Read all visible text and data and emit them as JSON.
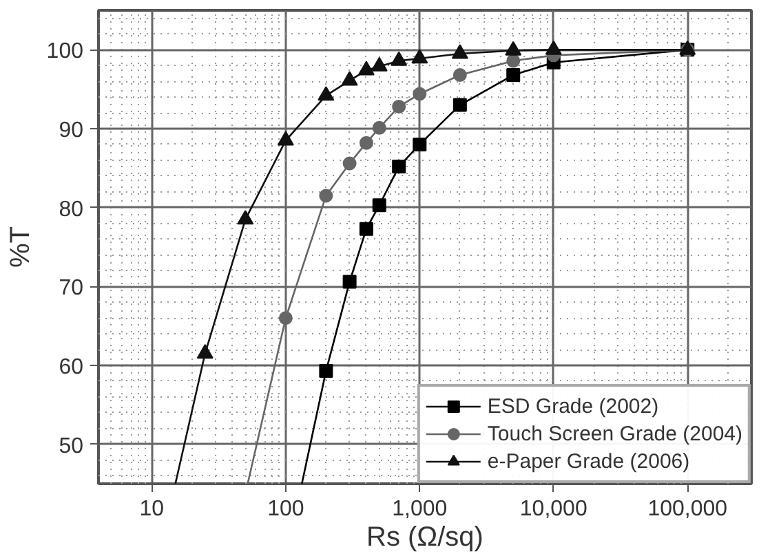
{
  "chart_data": {
    "type": "line",
    "xlabel": "Rs (Ω/sq)",
    "ylabel": "%T",
    "log": "x",
    "xlim": [
      4,
      300000
    ],
    "ylim": [
      45,
      105
    ],
    "xticks": [
      10,
      100,
      {
        "value": 1000,
        "label": "1,000"
      },
      {
        "value": 10000,
        "label": "10,000"
      },
      {
        "value": 100000,
        "label": "100,000"
      }
    ],
    "yticks": [
      50,
      60,
      70,
      80,
      90,
      100
    ],
    "grid": true,
    "legend": "bottom right",
    "line_style": "solid",
    "series": [
      {
        "name": "ESD Grade (2002)",
        "color": "#000000",
        "marker": "square",
        "x": [
          200,
          300,
          400,
          500,
          700,
          1000,
          2000,
          5000,
          10000,
          100000
        ],
        "values": [
          59.3,
          70.6,
          77.3,
          80.3,
          85.2,
          88,
          93,
          96.8,
          98.4,
          100
        ]
      },
      {
        "name": "Touch Screen Grade (2004)",
        "color": "#666666",
        "marker": "circle",
        "x": [
          100,
          200,
          300,
          400,
          500,
          700,
          1000,
          2000,
          5000,
          10000,
          100000
        ],
        "values": [
          66,
          81.5,
          85.6,
          88.2,
          90.1,
          92.8,
          94.4,
          96.8,
          98.6,
          99.3,
          100
        ]
      },
      {
        "name": "e-Paper Grade (2006)",
        "color": "#111111",
        "marker": "triangle",
        "x": [
          25,
          50,
          100,
          200,
          300,
          400,
          500,
          700,
          1000,
          2000,
          5000,
          10000,
          100000
        ],
        "values": [
          61.5,
          78.5,
          88.5,
          94.2,
          96.1,
          97.4,
          97.9,
          98.6,
          98.9,
          99.5,
          99.9,
          100,
          100
        ]
      },
      {
        "color": "#000000",
        "marker": "none",
        "x": [
          132,
          200
        ],
        "values": [
          45,
          59.3
        ]
      },
      {
        "color": "#666666",
        "marker": "none",
        "x": [
          52,
          100
        ],
        "values": [
          45,
          66
        ]
      },
      {
        "color": "#111111",
        "marker": "none",
        "x": [
          15,
          25
        ],
        "values": [
          45,
          61.5
        ]
      }
    ]
  }
}
